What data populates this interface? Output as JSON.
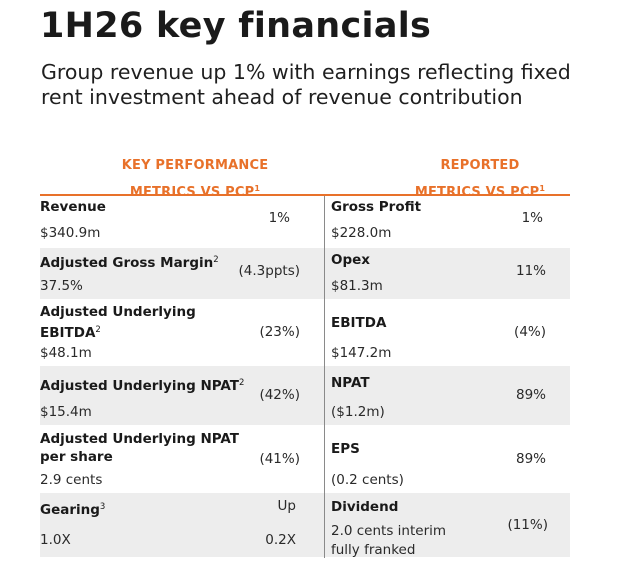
{
  "title": "1H26 key financials",
  "subtitle": "Group revenue up 1% with earnings reflecting fixed rent investment ahead of revenue contribution",
  "headers": {
    "left_line1": "KEY PERFORMANCE",
    "left_line2": "METRICS VS PCP",
    "left_sup": "1",
    "right_line1": "REPORTED",
    "right_line2": "METRICS VS PCP",
    "right_sup": "1"
  },
  "rows": [
    {
      "left": {
        "label": "Revenue",
        "sup": "",
        "value": "$340.9m",
        "change": "1%"
      },
      "right": {
        "label": "Gross Profit",
        "value": "$228.0m",
        "change": "1%"
      }
    },
    {
      "left": {
        "label": "Adjusted Gross Margin",
        "sup": "2",
        "value": "37.5%",
        "change": "(4.3ppts)"
      },
      "right": {
        "label": "Opex",
        "value": "$81.3m",
        "change": "11%"
      }
    },
    {
      "left": {
        "label_line1": "Adjusted Underlying",
        "label_line2": "EBITDA",
        "sup": "2",
        "value": "$48.1m",
        "change": "(23%)"
      },
      "right": {
        "label": "EBITDA",
        "value": "$147.2m",
        "change": "(4%)"
      }
    },
    {
      "left": {
        "label": "Adjusted Underlying NPAT",
        "sup": "2",
        "value": "$15.4m",
        "change": "(42%)"
      },
      "right": {
        "label": "NPAT",
        "value": "($1.2m)",
        "change": "89%"
      }
    },
    {
      "left": {
        "label_line1": "Adjusted Underlying NPAT",
        "label_line2": "per share",
        "sup": "",
        "value": "2.9 cents",
        "change": "(41%)"
      },
      "right": {
        "label": "EPS",
        "value": "(0.2 cents)",
        "change": "89%"
      }
    },
    {
      "left": {
        "label": "Gearing",
        "sup": "3",
        "value": "1.0X",
        "change_top": "Up",
        "change": "0.2X"
      },
      "right": {
        "label": "Dividend",
        "value_line1": "2.0 cents interim",
        "value_line2": "fully franked",
        "change": "(11%)"
      }
    }
  ],
  "colors": {
    "accent": "#e8712a",
    "shade": "#ededed",
    "divider": "#8a8a8a"
  }
}
